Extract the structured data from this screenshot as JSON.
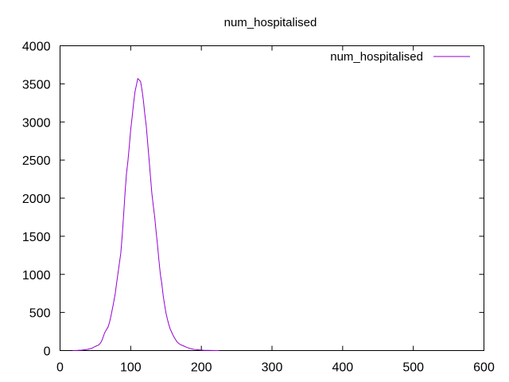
{
  "chart_data": {
    "type": "line",
    "title": "num_hospitalised",
    "xlabel": "",
    "ylabel": "",
    "xlim": [
      0,
      600
    ],
    "ylim": [
      0,
      4000
    ],
    "xticks": [
      "0",
      "100",
      "200",
      "300",
      "400",
      "500",
      "600"
    ],
    "yticks": [
      "0",
      "500",
      "1000",
      "1500",
      "2000",
      "2500",
      "3000",
      "3500",
      "4000"
    ],
    "grid": false,
    "legend_position": "top-right",
    "series": [
      {
        "name": "num_hospitalised",
        "color": "#9400d3",
        "x": [
          18,
          25,
          30,
          35,
          40,
          45,
          50,
          55,
          58,
          60,
          63,
          66,
          68,
          70,
          72,
          75,
          78,
          80,
          83,
          86,
          88,
          90,
          92,
          94,
          96,
          98,
          100,
          102,
          104,
          106,
          108,
          110,
          112,
          114,
          116,
          118,
          120,
          122,
          124,
          126,
          128,
          130,
          132,
          134,
          136,
          138,
          140,
          142,
          144,
          146,
          148,
          150,
          152,
          154,
          156,
          158,
          160,
          163,
          166,
          170,
          175,
          180,
          185,
          190,
          195,
          200,
          205,
          210,
          215,
          220,
          225
        ],
        "y": [
          0,
          2,
          5,
          10,
          18,
          30,
          55,
          75,
          110,
          150,
          230,
          280,
          310,
          370,
          450,
          590,
          740,
          880,
          1080,
          1280,
          1510,
          1780,
          2070,
          2320,
          2480,
          2680,
          2900,
          3060,
          3240,
          3390,
          3480,
          3570,
          3550,
          3530,
          3420,
          3280,
          3100,
          2950,
          2730,
          2510,
          2280,
          2060,
          1900,
          1750,
          1560,
          1380,
          1180,
          1000,
          880,
          720,
          600,
          490,
          410,
          340,
          280,
          240,
          200,
          150,
          110,
          80,
          60,
          40,
          25,
          15,
          10,
          6,
          3,
          2,
          1,
          0,
          0
        ]
      }
    ]
  }
}
